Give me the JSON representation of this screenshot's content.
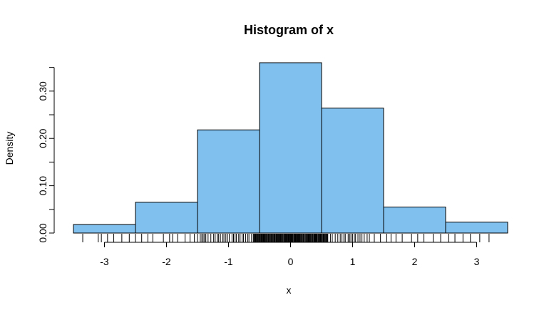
{
  "chart_data": {
    "type": "bar",
    "title": "Histogram of x",
    "xlabel": "x",
    "ylabel": "Density",
    "bin_edges": [
      -3.5,
      -2.5,
      -1.5,
      -0.5,
      0.5,
      1.5,
      2.5,
      3.5
    ],
    "values": [
      0.018,
      0.065,
      0.218,
      0.36,
      0.264,
      0.055,
      0.023
    ],
    "xticks": [
      "-3",
      "-2",
      "-1",
      "0",
      "1",
      "2",
      "3"
    ],
    "xtick_values": [
      -3,
      -2,
      -1,
      0,
      1,
      2,
      3
    ],
    "yticks": [
      "0.00",
      "0.10",
      "0.20",
      "0.30"
    ],
    "ytick_values": [
      0,
      0.1,
      0.2,
      0.3
    ],
    "xlim": [
      -3.5,
      3.5
    ],
    "ylim": [
      0,
      0.36
    ],
    "bar_color": "#7fc0ee",
    "grid": false,
    "rug": {
      "dense": [
        [
          -0.6,
          0.6
        ]
      ],
      "medium": [
        [
          -1.5,
          -0.6
        ],
        [
          0.6,
          1.3
        ]
      ],
      "sparse_points": [
        -3.35,
        -3.1,
        -3.05,
        -2.95,
        -2.85,
        -2.72,
        -2.6,
        -2.5,
        -2.4,
        -2.3,
        -2.22,
        -2.05,
        -1.95,
        -1.9,
        -1.82,
        -1.7,
        -1.62,
        -1.55,
        1.35,
        1.45,
        1.55,
        1.62,
        1.7,
        1.8,
        1.95,
        2.05,
        2.15,
        2.3,
        2.42,
        2.55,
        2.65,
        2.78,
        2.9,
        3.05,
        3.2
      ]
    }
  }
}
